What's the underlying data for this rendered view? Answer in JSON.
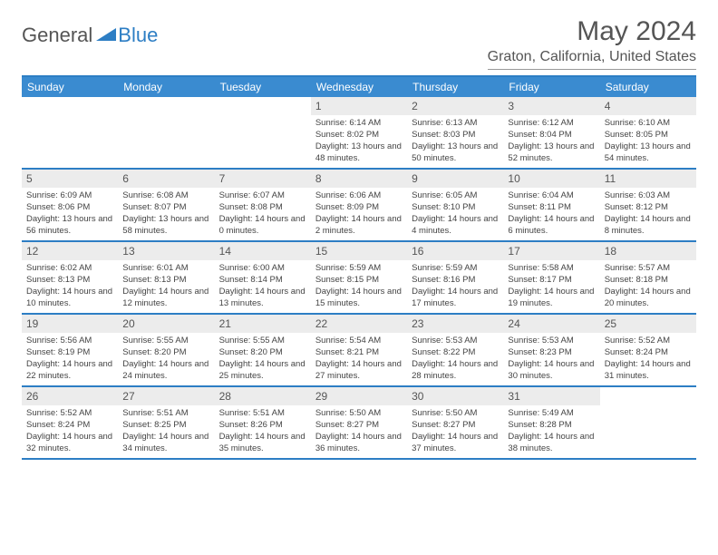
{
  "logo": {
    "general": "General",
    "blue": "Blue"
  },
  "title": "May 2024",
  "location": "Graton, California, United States",
  "colors": {
    "header_bg": "#3a8bd0",
    "border": "#2d7ec4",
    "daynum_bg": "#ececec",
    "text": "#444"
  },
  "days_of_week": [
    "Sunday",
    "Monday",
    "Tuesday",
    "Wednesday",
    "Thursday",
    "Friday",
    "Saturday"
  ],
  "weeks": [
    [
      null,
      null,
      null,
      {
        "n": "1",
        "sr": "6:14 AM",
        "ss": "8:02 PM",
        "dl": "13 hours and 48 minutes."
      },
      {
        "n": "2",
        "sr": "6:13 AM",
        "ss": "8:03 PM",
        "dl": "13 hours and 50 minutes."
      },
      {
        "n": "3",
        "sr": "6:12 AM",
        "ss": "8:04 PM",
        "dl": "13 hours and 52 minutes."
      },
      {
        "n": "4",
        "sr": "6:10 AM",
        "ss": "8:05 PM",
        "dl": "13 hours and 54 minutes."
      }
    ],
    [
      {
        "n": "5",
        "sr": "6:09 AM",
        "ss": "8:06 PM",
        "dl": "13 hours and 56 minutes."
      },
      {
        "n": "6",
        "sr": "6:08 AM",
        "ss": "8:07 PM",
        "dl": "13 hours and 58 minutes."
      },
      {
        "n": "7",
        "sr": "6:07 AM",
        "ss": "8:08 PM",
        "dl": "14 hours and 0 minutes."
      },
      {
        "n": "8",
        "sr": "6:06 AM",
        "ss": "8:09 PM",
        "dl": "14 hours and 2 minutes."
      },
      {
        "n": "9",
        "sr": "6:05 AM",
        "ss": "8:10 PM",
        "dl": "14 hours and 4 minutes."
      },
      {
        "n": "10",
        "sr": "6:04 AM",
        "ss": "8:11 PM",
        "dl": "14 hours and 6 minutes."
      },
      {
        "n": "11",
        "sr": "6:03 AM",
        "ss": "8:12 PM",
        "dl": "14 hours and 8 minutes."
      }
    ],
    [
      {
        "n": "12",
        "sr": "6:02 AM",
        "ss": "8:13 PM",
        "dl": "14 hours and 10 minutes."
      },
      {
        "n": "13",
        "sr": "6:01 AM",
        "ss": "8:13 PM",
        "dl": "14 hours and 12 minutes."
      },
      {
        "n": "14",
        "sr": "6:00 AM",
        "ss": "8:14 PM",
        "dl": "14 hours and 13 minutes."
      },
      {
        "n": "15",
        "sr": "5:59 AM",
        "ss": "8:15 PM",
        "dl": "14 hours and 15 minutes."
      },
      {
        "n": "16",
        "sr": "5:59 AM",
        "ss": "8:16 PM",
        "dl": "14 hours and 17 minutes."
      },
      {
        "n": "17",
        "sr": "5:58 AM",
        "ss": "8:17 PM",
        "dl": "14 hours and 19 minutes."
      },
      {
        "n": "18",
        "sr": "5:57 AM",
        "ss": "8:18 PM",
        "dl": "14 hours and 20 minutes."
      }
    ],
    [
      {
        "n": "19",
        "sr": "5:56 AM",
        "ss": "8:19 PM",
        "dl": "14 hours and 22 minutes."
      },
      {
        "n": "20",
        "sr": "5:55 AM",
        "ss": "8:20 PM",
        "dl": "14 hours and 24 minutes."
      },
      {
        "n": "21",
        "sr": "5:55 AM",
        "ss": "8:20 PM",
        "dl": "14 hours and 25 minutes."
      },
      {
        "n": "22",
        "sr": "5:54 AM",
        "ss": "8:21 PM",
        "dl": "14 hours and 27 minutes."
      },
      {
        "n": "23",
        "sr": "5:53 AM",
        "ss": "8:22 PM",
        "dl": "14 hours and 28 minutes."
      },
      {
        "n": "24",
        "sr": "5:53 AM",
        "ss": "8:23 PM",
        "dl": "14 hours and 30 minutes."
      },
      {
        "n": "25",
        "sr": "5:52 AM",
        "ss": "8:24 PM",
        "dl": "14 hours and 31 minutes."
      }
    ],
    [
      {
        "n": "26",
        "sr": "5:52 AM",
        "ss": "8:24 PM",
        "dl": "14 hours and 32 minutes."
      },
      {
        "n": "27",
        "sr": "5:51 AM",
        "ss": "8:25 PM",
        "dl": "14 hours and 34 minutes."
      },
      {
        "n": "28",
        "sr": "5:51 AM",
        "ss": "8:26 PM",
        "dl": "14 hours and 35 minutes."
      },
      {
        "n": "29",
        "sr": "5:50 AM",
        "ss": "8:27 PM",
        "dl": "14 hours and 36 minutes."
      },
      {
        "n": "30",
        "sr": "5:50 AM",
        "ss": "8:27 PM",
        "dl": "14 hours and 37 minutes."
      },
      {
        "n": "31",
        "sr": "5:49 AM",
        "ss": "8:28 PM",
        "dl": "14 hours and 38 minutes."
      },
      null
    ]
  ],
  "labels": {
    "sunrise": "Sunrise:",
    "sunset": "Sunset:",
    "daylight": "Daylight:"
  }
}
